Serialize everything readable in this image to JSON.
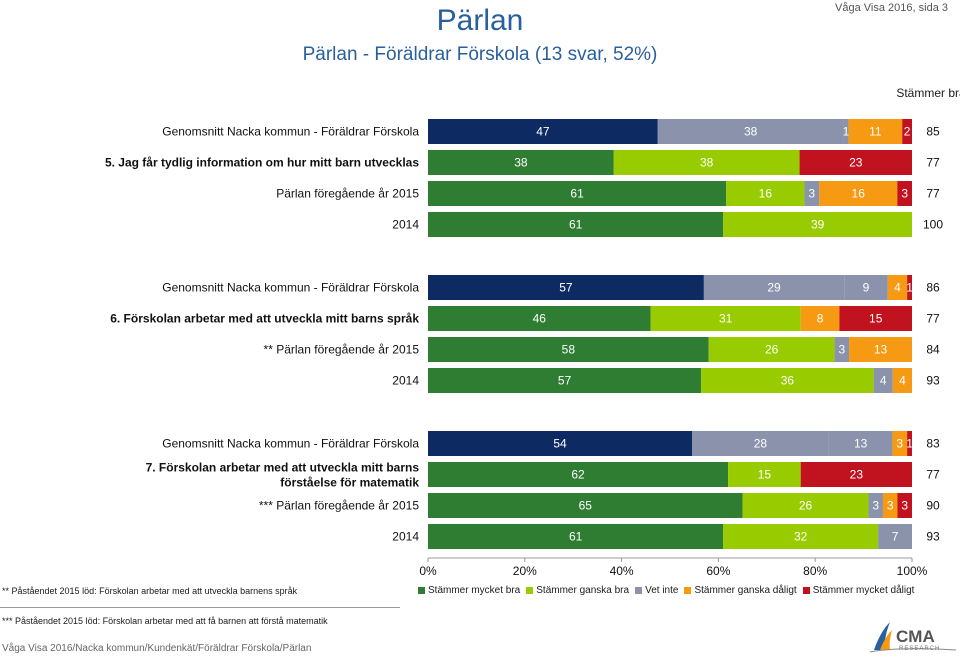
{
  "header": {
    "title": "Pärlan",
    "subtitle": "Pärlan - Föräldrar Förskola (13 svar, 52%)",
    "page_ref": "Våga Visa 2016, sida 3"
  },
  "column_header": "Stämmer bra",
  "colors": {
    "nacka_mycket_bra": "#0d2a63",
    "stammer_mycket_bra": "#2e7d32",
    "stammer_ganska_bra": "#99cc00",
    "vet_inte": "#8a93ab",
    "stammer_ganska_daligt": "#f59a12",
    "stammer_mycket_daligt": "#c1121f"
  },
  "chart_data": {
    "type": "bar",
    "orientation": "horizontal",
    "stacked": true,
    "xlim": [
      0,
      100
    ],
    "xticks": [
      "0%",
      "20%",
      "40%",
      "60%",
      "80%",
      "100%"
    ],
    "legend_position": "bottom",
    "series_names": [
      "Stämmer mycket bra",
      "Stämmer ganska bra",
      "Vet inte",
      "Stämmer ganska dåligt",
      "Stämmer mycket dåligt"
    ],
    "groups": [
      {
        "question": "5. Jag får tydlig information om hur mitt barn utvecklas",
        "rows": [
          {
            "label": "Genomsnitt Nacka kommun - Föräldrar Förskola",
            "nacka": true,
            "values": [
              47,
              38,
              1,
              11,
              2
            ],
            "sum": "85"
          },
          {
            "label": "5. Jag får tydlig information om hur mitt barn utvecklas",
            "bold": true,
            "values": [
              38,
              38,
              0,
              0,
              23
            ],
            "sum": "77"
          },
          {
            "label": "Pärlan föregående år 2015",
            "values": [
              61,
              16,
              3,
              16,
              3
            ],
            "sum": "77"
          },
          {
            "label": "2014",
            "values": [
              61,
              39,
              0,
              0,
              0
            ],
            "sum": "100"
          }
        ]
      },
      {
        "question": "6. Förskolan arbetar med att utveckla mitt barns språk",
        "rows": [
          {
            "label": "Genomsnitt Nacka kommun - Föräldrar Förskola",
            "nacka": true,
            "values": [
              57,
              29,
              9,
              4,
              1
            ],
            "sum": "86"
          },
          {
            "label": "6. Förskolan arbetar med att utveckla mitt barns språk",
            "bold": true,
            "values": [
              46,
              31,
              0,
              8,
              15
            ],
            "sum": "77"
          },
          {
            "label": "** Pärlan föregående år 2015",
            "values": [
              58,
              26,
              3,
              13,
              0
            ],
            "sum": "84"
          },
          {
            "label": "2014",
            "values": [
              57,
              36,
              4,
              4,
              0
            ],
            "sum": "93"
          }
        ]
      },
      {
        "question": "7. Förskolan arbetar med att utveckla mitt barns förståelse för matematik",
        "rows": [
          {
            "label": "Genomsnitt Nacka kommun - Föräldrar Förskola",
            "nacka": true,
            "values": [
              54,
              28,
              13,
              3,
              1
            ],
            "sum": "83"
          },
          {
            "label": "7. Förskolan arbetar med att utveckla mitt barns förståelse för matematik",
            "bold": true,
            "values": [
              62,
              15,
              0,
              0,
              23
            ],
            "sum": "77"
          },
          {
            "label": "*** Pärlan föregående år 2015",
            "values": [
              65,
              26,
              3,
              3,
              3
            ],
            "sum": "90"
          },
          {
            "label": "2014",
            "values": [
              61,
              32,
              7,
              0,
              0
            ],
            "sum": "93"
          }
        ]
      }
    ]
  },
  "notes": {
    "note1": "** Påståendet 2015 löd: Förskolan arbetar med att utveckla barnens språk",
    "note2": "*** Påståendet 2015 löd: Förskolan arbetar med att få barnen att förstå matematik"
  },
  "footer": "Våga Visa 2016/Nacka kommun/Kundenkät/Föräldrar Förskola/Pärlan",
  "logo": {
    "text": "CMA",
    "subtext": "RESEARCH"
  }
}
